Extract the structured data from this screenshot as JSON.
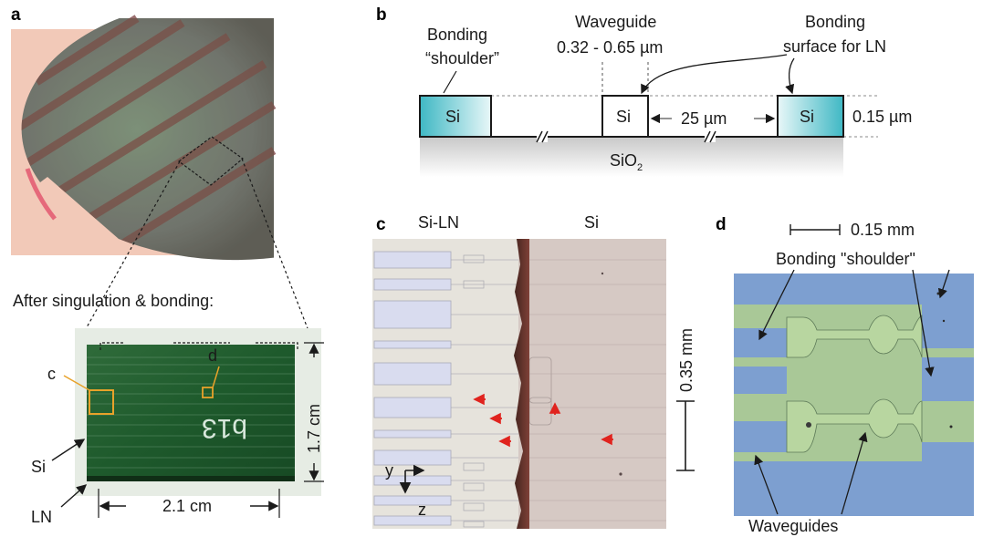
{
  "panels": {
    "a": {
      "label": "a",
      "caption": "After singulation & bonding:",
      "callout_c": "c",
      "callout_d": "d",
      "handwriting": "b13",
      "dim_height": "1.7 cm",
      "dim_width": "2.1 cm",
      "label_si": "Si",
      "label_ln": "LN"
    },
    "b": {
      "label": "b",
      "bonding_shoulder_line1": "Bonding",
      "bonding_shoulder_line2": "“shoulder”",
      "waveguide_line1": "Waveguide",
      "waveguide_line2": "0.32 - 0.65 µm",
      "bonding_surface_line1": "Bonding",
      "bonding_surface_line2": "surface for LN",
      "si_left": "Si",
      "si_mid": "Si",
      "si_right": "Si",
      "gap": "25 µm",
      "thickness": "0.15 µm",
      "substrate": "SiO",
      "substrate_sub": "2"
    },
    "c": {
      "label": "c",
      "region_left": "Si-LN",
      "region_right": "Si",
      "scale": "0.35 mm",
      "axis_y": "y",
      "axis_z": "z"
    },
    "d": {
      "label": "d",
      "scale": "0.15 mm",
      "bonding_shoulder": "Bonding \"shoulder\"",
      "waveguides": "Waveguides"
    }
  },
  "colors": {
    "si_cyan": "#3fb8c4",
    "arrow_red": "#e0231e",
    "callout_orange": "#e8a22a",
    "chip_green": "#1e5a2c",
    "wafer_bg": "#f2c9b8"
  }
}
